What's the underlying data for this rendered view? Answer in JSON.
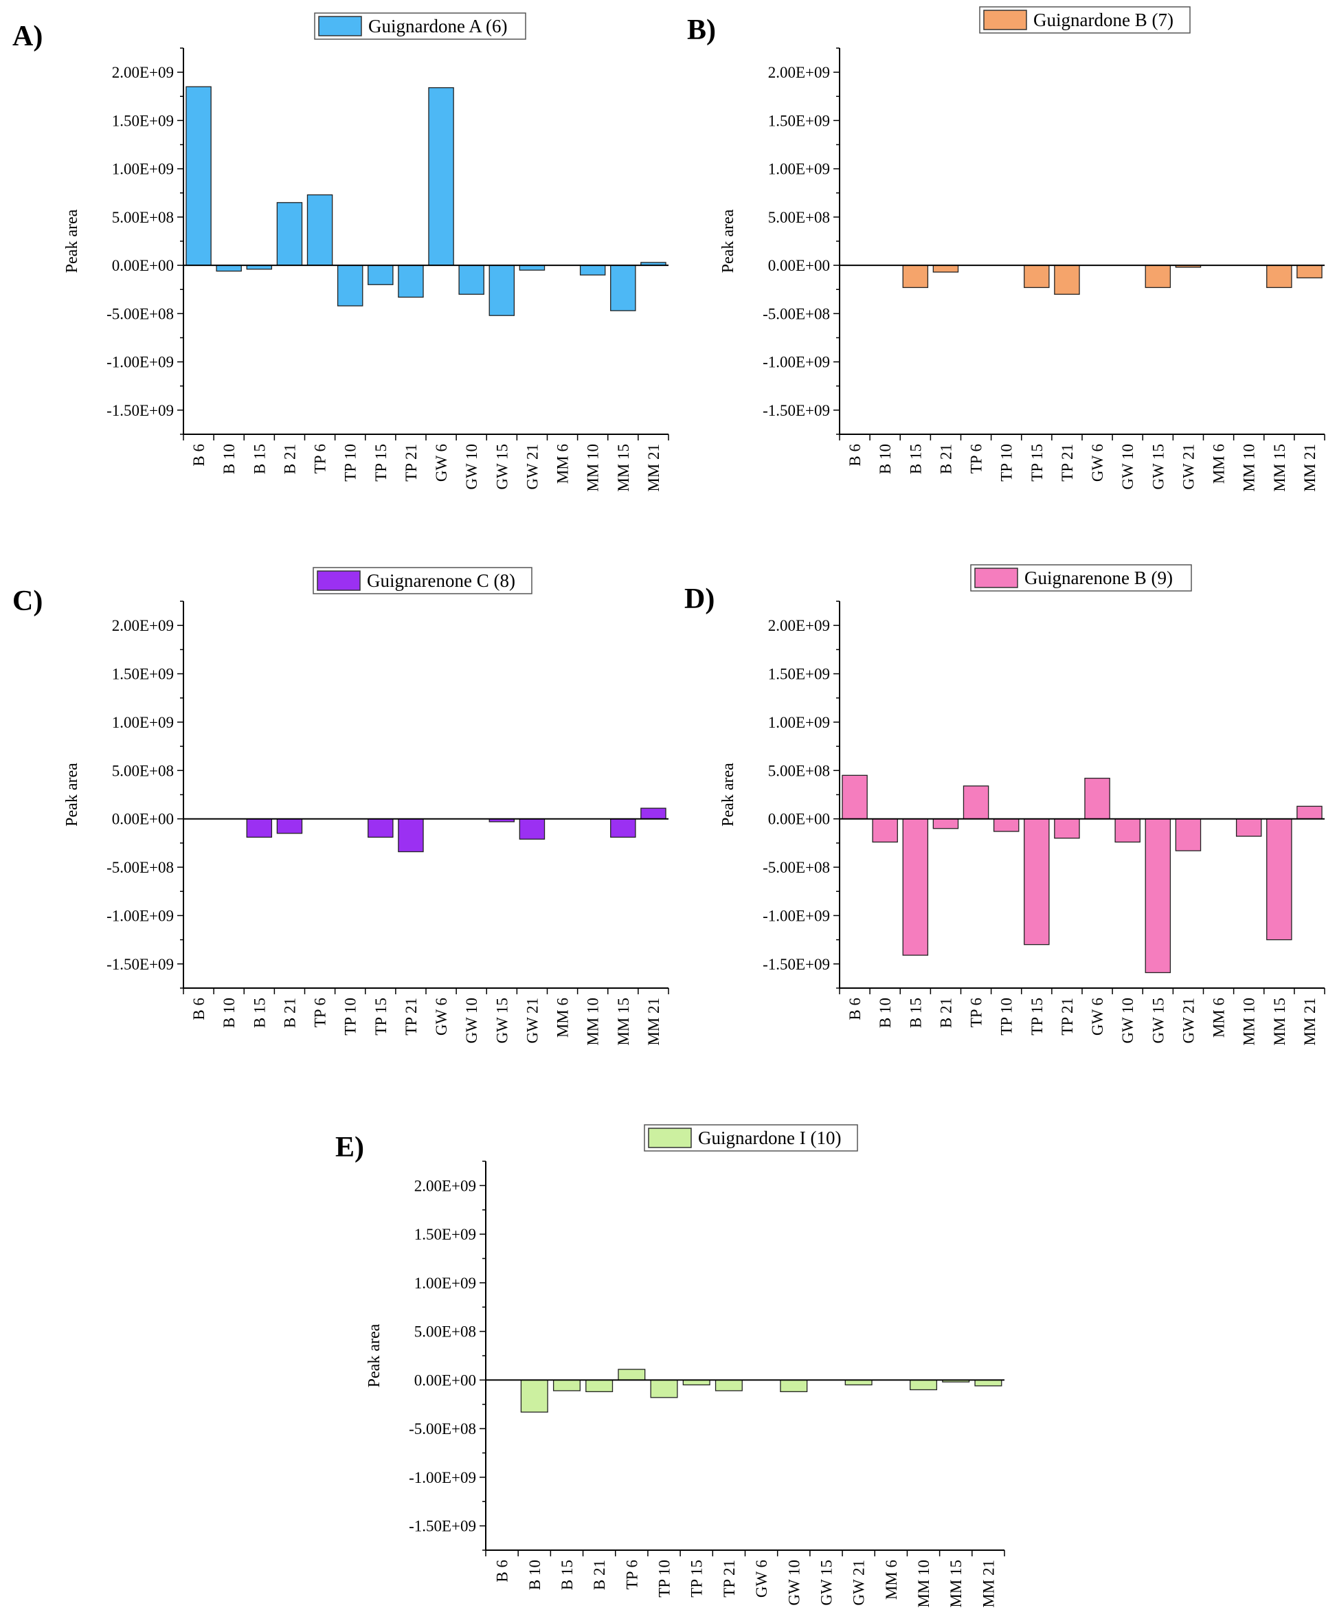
{
  "chart_data": [
    {
      "type": "bar",
      "panel": "A)",
      "title": "",
      "legend": "Guignardone A (6)",
      "color": "#4DB8F5",
      "xlabel": "",
      "ylabel": "Peak area",
      "ylim": [
        -1750000000.0,
        2250000000.0
      ],
      "yticks": [
        2000000000.0,
        1500000000.0,
        1000000000.0,
        500000000.0,
        0,
        -500000000.0,
        -1000000000.0,
        -1500000000.0
      ],
      "ytick_labels": [
        "2.00E+09",
        "1.50E+09",
        "1.00E+09",
        "5.00E+08",
        "0.00E+00",
        "-5.00E+08",
        "-1.00E+09",
        "-1.50E+09"
      ],
      "categories": [
        "B 6",
        "B 10",
        "B 15",
        "B 21",
        "TP 6",
        "TP 10",
        "TP 15",
        "TP 21",
        "GW 6",
        "GW 10",
        "GW 15",
        "GW 21",
        "MM 6",
        "MM 10",
        "MM 15",
        "MM 21"
      ],
      "values": [
        1850000000.0,
        -60000000.0,
        -40000000.0,
        650000000.0,
        730000000.0,
        -420000000.0,
        -200000000.0,
        -330000000.0,
        1840000000.0,
        -300000000.0,
        -520000000.0,
        -50000000.0,
        0,
        -100000000.0,
        -470000000.0,
        30000000.0
      ]
    },
    {
      "type": "bar",
      "panel": "B)",
      "title": "",
      "legend": "Guignardone B (7)",
      "color": "#F5A46B",
      "xlabel": "",
      "ylabel": "Peak area",
      "ylim": [
        -1750000000.0,
        2250000000.0
      ],
      "yticks": [
        2000000000.0,
        1500000000.0,
        1000000000.0,
        500000000.0,
        0,
        -500000000.0,
        -1000000000.0,
        -1500000000.0
      ],
      "ytick_labels": [
        "2.00E+09",
        "1.50E+09",
        "1.00E+09",
        "5.00E+08",
        "0.00E+00",
        "-5.00E+08",
        "-1.00E+09",
        "-1.50E+09"
      ],
      "categories": [
        "B 6",
        "B 10",
        "B 15",
        "B 21",
        "TP 6",
        "TP 10",
        "TP 15",
        "TP 21",
        "GW 6",
        "GW 10",
        "GW 15",
        "GW 21",
        "MM 6",
        "MM 10",
        "MM 15",
        "MM 21"
      ],
      "values": [
        0,
        0,
        -230000000.0,
        -70000000.0,
        0,
        0,
        -230000000.0,
        -300000000.0,
        0,
        0,
        -230000000.0,
        -20000000.0,
        0,
        0,
        -230000000.0,
        -130000000.0
      ]
    },
    {
      "type": "bar",
      "panel": "C)",
      "title": "",
      "legend": "Guignarenone C (8)",
      "color": "#9B30F2",
      "xlabel": "",
      "ylabel": "Peak area",
      "ylim": [
        -1750000000.0,
        2250000000.0
      ],
      "yticks": [
        2000000000.0,
        1500000000.0,
        1000000000.0,
        500000000.0,
        0,
        -500000000.0,
        -1000000000.0,
        -1500000000.0
      ],
      "ytick_labels": [
        "2.00E+09",
        "1.50E+09",
        "1.00E+09",
        "5.00E+08",
        "0.00E+00",
        "-5.00E+08",
        "-1.00E+09",
        "-1.50E+09"
      ],
      "categories": [
        "B 6",
        "B 10",
        "B 15",
        "B 21",
        "TP 6",
        "TP 10",
        "TP 15",
        "TP 21",
        "GW 6",
        "GW 10",
        "GW 15",
        "GW 21",
        "MM 6",
        "MM 10",
        "MM 15",
        "MM 21"
      ],
      "values": [
        0,
        0,
        -190000000.0,
        -150000000.0,
        0,
        0,
        -190000000.0,
        -340000000.0,
        0,
        0,
        -30000000.0,
        -210000000.0,
        0,
        0,
        -190000000.0,
        110000000.0
      ]
    },
    {
      "type": "bar",
      "panel": "D)",
      "title": "",
      "legend": "Guignarenone B (9)",
      "color": "#F57DBE",
      "xlabel": "",
      "ylabel": "Peak area",
      "ylim": [
        -1750000000.0,
        2250000000.0
      ],
      "yticks": [
        2000000000.0,
        1500000000.0,
        1000000000.0,
        500000000.0,
        0,
        -500000000.0,
        -1000000000.0,
        -1500000000.0
      ],
      "ytick_labels": [
        "2.00E+09",
        "1.50E+09",
        "1.00E+09",
        "5.00E+08",
        "0.00E+00",
        "-5.00E+08",
        "-1.00E+09",
        "-1.50E+09"
      ],
      "categories": [
        "B 6",
        "B 10",
        "B 15",
        "B 21",
        "TP 6",
        "TP 10",
        "TP 15",
        "TP 21",
        "GW 6",
        "GW 10",
        "GW 15",
        "GW 21",
        "MM 6",
        "MM 10",
        "MM 15",
        "MM 21"
      ],
      "values": [
        450000000.0,
        -240000000.0,
        -1410000000.0,
        -100000000.0,
        340000000.0,
        -130000000.0,
        -1300000000.0,
        -200000000.0,
        420000000.0,
        -240000000.0,
        -1590000000.0,
        -330000000.0,
        0,
        -180000000.0,
        -1250000000.0,
        130000000.0
      ]
    },
    {
      "type": "bar",
      "panel": "E)",
      "title": "",
      "legend": "Guignardone I (10)",
      "color": "#CCF0A0",
      "xlabel": "",
      "ylabel": "Peak area",
      "ylim": [
        -1750000000.0,
        2250000000.0
      ],
      "yticks": [
        2000000000.0,
        1500000000.0,
        1000000000.0,
        500000000.0,
        0,
        -500000000.0,
        -1000000000.0,
        -1500000000.0
      ],
      "ytick_labels": [
        "2.00E+09",
        "1.50E+09",
        "1.00E+09",
        "5.00E+08",
        "0.00E+00",
        "-5.00E+08",
        "-1.00E+09",
        "-1.50E+09"
      ],
      "categories": [
        "B 6",
        "B 10",
        "B 15",
        "B 21",
        "TP 6",
        "TP 10",
        "TP 15",
        "TP 21",
        "GW 6",
        "GW 10",
        "GW 15",
        "GW 21",
        "MM 6",
        "MM 10",
        "MM 15",
        "MM 21"
      ],
      "values": [
        0,
        -330000000.0,
        -110000000.0,
        -120000000.0,
        110000000.0,
        -180000000.0,
        -50000000.0,
        -110000000.0,
        0,
        -120000000.0,
        0,
        -50000000.0,
        0,
        -100000000.0,
        -20000000.0,
        -60000000.0
      ]
    }
  ]
}
